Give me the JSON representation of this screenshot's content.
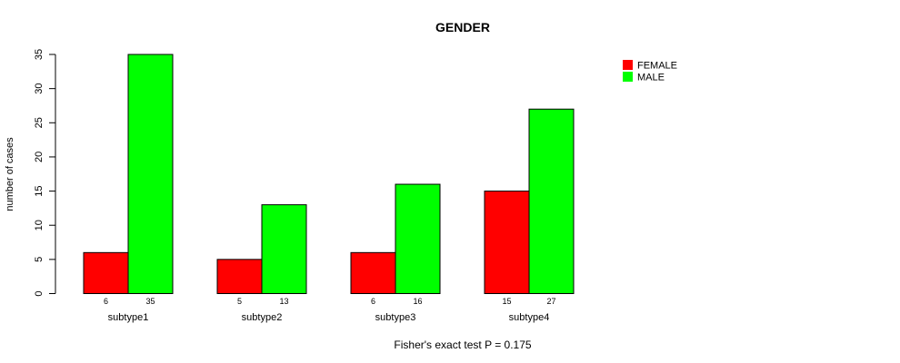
{
  "chart_data": {
    "type": "bar",
    "title": "GENDER",
    "xlabel": "",
    "ylabel": "number of cases",
    "ylim": [
      0,
      35
    ],
    "yticks": [
      0,
      5,
      10,
      15,
      20,
      25,
      30,
      35
    ],
    "grid": false,
    "legend_position": "top-right",
    "categories": [
      "subtype1",
      "subtype2",
      "subtype3",
      "subtype4"
    ],
    "series": [
      {
        "name": "FEMALE",
        "color": "#ff0000",
        "values": [
          6,
          5,
          6,
          15
        ]
      },
      {
        "name": "MALE",
        "color": "#00ff00",
        "values": [
          35,
          13,
          16,
          27
        ]
      }
    ],
    "footnote": "Fisher's exact test P = 0.175"
  }
}
